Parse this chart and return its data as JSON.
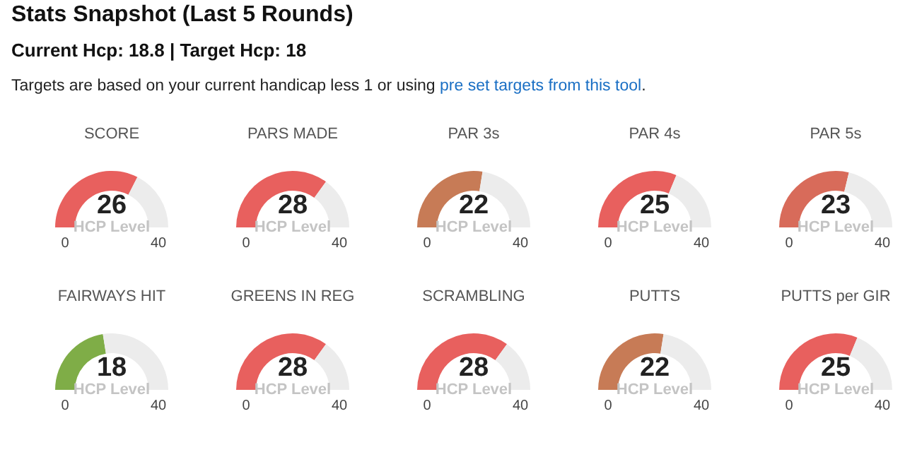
{
  "chart_data": [
    {
      "type": "other",
      "title": "Stats Snapshot (Last 5 Rounds)",
      "subtitle": "Current Hcp: 18.8 | Target Hcp: 18",
      "annotations": [
        "Targets are based on your current handicap less 1 or using ",
        "pre set targets from this tool",
        "."
      ]
    },
    {
      "type": "donut",
      "title": "SCORE",
      "categories": [
        null,
        null
      ],
      "values": [
        26,
        14
      ],
      "colors": [
        "#e8605e",
        "#ececec"
      ],
      "value_labels": [
        "26",
        null
      ],
      "annotations": [
        "HCP Level",
        "0",
        "40"
      ]
    },
    {
      "type": "donut",
      "title": "PARS MADE",
      "categories": [
        null,
        null
      ],
      "values": [
        28,
        12
      ],
      "colors": [
        "#e8605e",
        "#ececec"
      ],
      "value_labels": [
        "28",
        null
      ],
      "annotations": [
        "HCP Level",
        "0",
        "40"
      ]
    },
    {
      "type": "donut",
      "title": "PAR 3s",
      "categories": [
        null,
        null
      ],
      "values": [
        22,
        18
      ],
      "colors": [
        "#c77b56",
        "#ececec"
      ],
      "value_labels": [
        "22",
        null
      ],
      "annotations": [
        "HCP Level",
        "0",
        "40"
      ]
    },
    {
      "type": "donut",
      "title": "PAR 4s",
      "categories": [
        null,
        null
      ],
      "values": [
        25,
        15
      ],
      "colors": [
        "#e8605e",
        "#ececec"
      ],
      "value_labels": [
        "25",
        null
      ],
      "annotations": [
        "HCP Level",
        "0",
        "40"
      ]
    },
    {
      "type": "donut",
      "title": "PAR 5s",
      "categories": [
        null,
        null
      ],
      "values": [
        23,
        17
      ],
      "colors": [
        "#d86b5a",
        "#ececec"
      ],
      "value_labels": [
        "23",
        null
      ],
      "annotations": [
        "HCP Level",
        "0",
        "40"
      ]
    },
    {
      "type": "donut",
      "title": "FAIRWAYS HIT",
      "categories": [
        null,
        null
      ],
      "values": [
        18,
        22
      ],
      "colors": [
        "#7fad47",
        "#ececec"
      ],
      "value_labels": [
        "18",
        null
      ],
      "annotations": [
        "HCP Level",
        "0",
        "40"
      ]
    },
    {
      "type": "donut",
      "title": "GREENS IN REG",
      "categories": [
        null,
        null
      ],
      "values": [
        28,
        12
      ],
      "colors": [
        "#e8605e",
        "#ececec"
      ],
      "value_labels": [
        "28",
        null
      ],
      "annotations": [
        "HCP Level",
        "0",
        "40"
      ]
    },
    {
      "type": "donut",
      "title": "SCRAMBLING",
      "categories": [
        null,
        null
      ],
      "values": [
        28,
        12
      ],
      "colors": [
        "#e8605e",
        "#ececec"
      ],
      "value_labels": [
        "28",
        null
      ],
      "annotations": [
        "HCP Level",
        "0",
        "40"
      ]
    },
    {
      "type": "donut",
      "title": "PUTTS",
      "categories": [
        null,
        null
      ],
      "values": [
        22,
        18
      ],
      "colors": [
        "#c77b56",
        "#ececec"
      ],
      "value_labels": [
        "22",
        null
      ],
      "annotations": [
        "HCP Level",
        "0",
        "40"
      ]
    },
    {
      "type": "donut",
      "title": "PUTTS per GIR",
      "categories": [
        null,
        null
      ],
      "values": [
        25,
        15
      ],
      "colors": [
        "#e8605e",
        "#ececec"
      ],
      "value_labels": [
        "25",
        null
      ],
      "annotations": [
        "HCP Level",
        "0",
        "40"
      ]
    }
  ]
}
